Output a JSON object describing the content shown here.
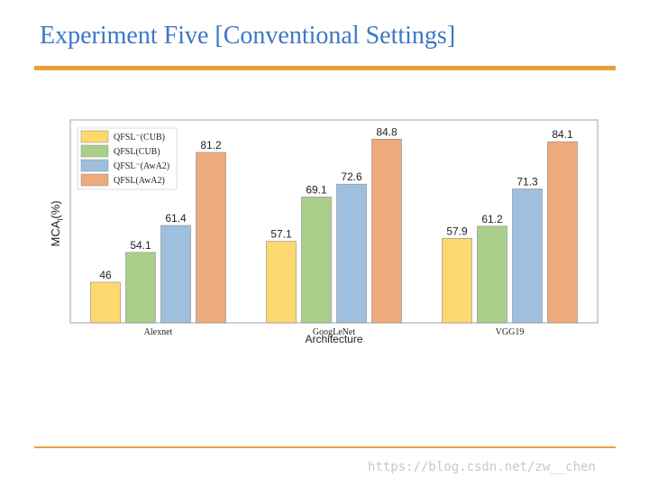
{
  "slide": {
    "title": "Experiment Five [Conventional Settings]",
    "watermark": "https://blog.csdn.net/zw__chen"
  },
  "colors": {
    "title": "#3b78c6",
    "rule": "#e8a13a"
  },
  "chart_data": {
    "type": "bar",
    "title": "",
    "xlabel": "Architecture",
    "ylabel": "MCA",
    "ylabel_subscript": "l",
    "ylabel_suffix": "(%)",
    "ylim": [
      35,
      90
    ],
    "grid": false,
    "legend_position": "top-left",
    "categories": [
      "Alexnet",
      "GoogLeNet",
      "VGG19"
    ],
    "series": [
      {
        "name": "QFSL⁻(CUB)",
        "color": "#fdd86e",
        "values": [
          46,
          57.1,
          57.9
        ]
      },
      {
        "name": "QFSL(CUB)",
        "color": "#a9cf8a",
        "values": [
          54.1,
          69.1,
          61.2
        ]
      },
      {
        "name": "QFSL⁻(AwA2)",
        "color": "#9fbfde",
        "values": [
          61.4,
          72.6,
          71.3
        ]
      },
      {
        "name": "QFSL(AwA2)",
        "color": "#edaa7c",
        "values": [
          81.2,
          84.8,
          84.1
        ]
      }
    ]
  }
}
